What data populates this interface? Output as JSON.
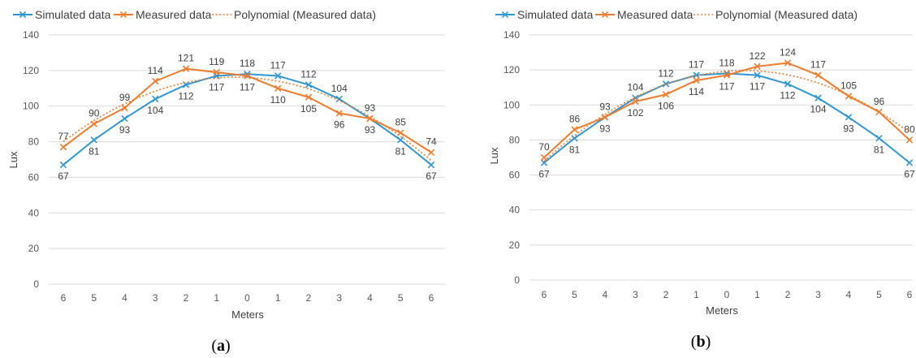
{
  "chart_data": [
    {
      "type": "line",
      "panel_label": {
        "open": "(",
        "letter": "a",
        "close": ")"
      },
      "categories": [
        "6",
        "5",
        "4",
        "3",
        "2",
        "1",
        "0",
        "1",
        "2",
        "3",
        "4",
        "5",
        "6"
      ],
      "xlabel": "Meters",
      "ylabel": "Lux",
      "ylim": [
        0,
        140
      ],
      "yticks": [
        0,
        20,
        40,
        60,
        80,
        100,
        120,
        140
      ],
      "grid": true,
      "legend_position": "top",
      "series": [
        {
          "name": "Simulated data",
          "color": "#2E97D4",
          "marker": "x",
          "values": [
            67,
            81,
            93,
            104,
            112,
            117,
            118,
            117,
            112,
            104,
            93,
            81,
            67
          ],
          "label_position": [
            "below",
            "below",
            "below",
            "below",
            "below",
            "below",
            "above",
            "above",
            "above",
            "above",
            "above",
            "below",
            "below"
          ]
        },
        {
          "name": "Measured data",
          "color": "#F07C2C",
          "marker": "x",
          "values": [
            77,
            90,
            99,
            114,
            121,
            119,
            117,
            110,
            105,
            96,
            93,
            85,
            74
          ],
          "label_position": [
            "above",
            "above",
            "above",
            "above",
            "above",
            "above",
            "below",
            "below",
            "below",
            "below",
            "below",
            "above",
            "above"
          ]
        },
        {
          "name": "Polynomial (Measured data)",
          "color": "#F07C2C",
          "dotted": true,
          "trend_of": "Measured data",
          "trend_order": 2
        }
      ]
    },
    {
      "type": "line",
      "panel_label": {
        "open": "(",
        "letter": "b",
        "close": ")"
      },
      "categories": [
        "6",
        "5",
        "4",
        "3",
        "2",
        "1",
        "0",
        "1",
        "2",
        "3",
        "4",
        "5",
        "6"
      ],
      "xlabel": "Meters",
      "ylabel": "Lux",
      "ylim": [
        0,
        140
      ],
      "yticks": [
        0,
        20,
        40,
        60,
        80,
        100,
        120,
        140
      ],
      "grid": true,
      "legend_position": "top",
      "series": [
        {
          "name": "Simulated data",
          "color": "#2E97D4",
          "marker": "x",
          "values": [
            67,
            81,
            93,
            104,
            112,
            117,
            118,
            117,
            112,
            104,
            93,
            81,
            67
          ],
          "label_position": [
            "below",
            "below",
            "below",
            "above",
            "above",
            "above",
            "above",
            "below",
            "below",
            "below",
            "below",
            "below",
            "below"
          ]
        },
        {
          "name": "Measured data",
          "color": "#F07C2C",
          "marker": "x",
          "values": [
            70,
            86,
            93,
            102,
            106,
            114,
            117,
            122,
            124,
            117,
            105,
            96,
            80
          ],
          "label_position": [
            "above",
            "above",
            "above",
            "below",
            "below",
            "below",
            "below",
            "above",
            "above",
            "above",
            "above",
            "above",
            "above"
          ]
        },
        {
          "name": "Polynomial (Measured data)",
          "color": "#F07C2C",
          "dotted": true,
          "trend_of": "Measured data",
          "trend_order": 2
        }
      ]
    }
  ]
}
